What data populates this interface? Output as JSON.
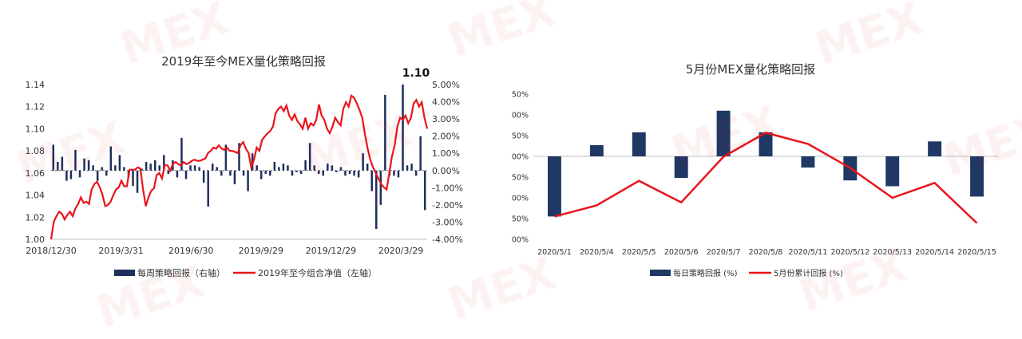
{
  "chart_data": [
    {
      "type": "bar+line",
      "title": "2019年至今MEX量化策略回报",
      "annotation": "1.10",
      "x_tick_labels": [
        "2018/12/30",
        "2019/3/31",
        "2019/6/30",
        "2019/9/29",
        "2019/12/29",
        "2020/3/29"
      ],
      "left_axis": {
        "ticks": [
          "1.00",
          "1.02",
          "1.04",
          "1.06",
          "1.08",
          "1.10",
          "1.12",
          "1.14"
        ],
        "ylim": [
          1.0,
          1.14
        ]
      },
      "right_axis": {
        "ticks": [
          "-4.00%",
          "-3.00%",
          "-2.00%",
          "-1.00%",
          "0.00%",
          "1.00%",
          "2.00%",
          "3.00%",
          "4.00%",
          "5.00%"
        ],
        "ylim": [
          -4.0,
          5.0
        ]
      },
      "series": [
        {
          "name": "每周策略回报（右轴）",
          "kind": "bar",
          "axis": "right",
          "color": "#1f2f5c",
          "values": [
            1.5,
            0.5,
            0.8,
            -0.6,
            -0.5,
            1.2,
            -0.4,
            0.7,
            0.6,
            0.3,
            -0.6,
            0.2,
            -0.3,
            1.4,
            0.3,
            0.9,
            0.2,
            -0.4,
            -0.9,
            -1.3,
            0.1,
            0.5,
            0.4,
            0.6,
            0.3,
            0.9,
            -0.2,
            0.6,
            -0.4,
            1.9,
            -0.5,
            0.3,
            0.3,
            0.2,
            -0.7,
            -2.1,
            0.4,
            0.2,
            -0.3,
            1.5,
            -0.3,
            -0.8,
            1.6,
            -0.3,
            -1.2,
            1.0,
            0.3,
            -0.5,
            -0.2,
            -0.3,
            0.5,
            0.2,
            0.4,
            0.3,
            -0.3,
            -0.1,
            -0.2,
            0.6,
            1.6,
            0.3,
            -0.2,
            -0.3,
            0.4,
            0.3,
            -0.1,
            0.2,
            -0.3,
            -0.2,
            -0.3,
            -0.4,
            1.0,
            0.4,
            -1.2,
            -3.4,
            -2.0,
            4.4,
            -0.3,
            -0.3,
            -0.4,
            5.0,
            0.3,
            0.4,
            -0.3,
            2.0,
            -2.3
          ]
        },
        {
          "name": "2019年至今组合净值（左轴）",
          "kind": "line",
          "axis": "left",
          "color": "#e8151b",
          "values": [
            1.0,
            1.016,
            1.021,
            1.025,
            1.023,
            1.018,
            1.022,
            1.025,
            1.021,
            1.028,
            1.032,
            1.038,
            1.033,
            1.034,
            1.032,
            1.045,
            1.05,
            1.052,
            1.047,
            1.04,
            1.03,
            1.031,
            1.034,
            1.04,
            1.045,
            1.047,
            1.053,
            1.048,
            1.048,
            1.063,
            1.063,
            1.063,
            1.065,
            1.064,
            1.045,
            1.03,
            1.038,
            1.044,
            1.046,
            1.058,
            1.06,
            1.055,
            1.067,
            1.067,
            1.062,
            1.068,
            1.07,
            1.068,
            1.067,
            1.07,
            1.068,
            1.069,
            1.071,
            1.072,
            1.071,
            1.071,
            1.072,
            1.073,
            1.078,
            1.08,
            1.083,
            1.082,
            1.085,
            1.082,
            1.081,
            1.083,
            1.08,
            1.08,
            1.079,
            1.078,
            1.085,
            1.088,
            1.082,
            1.078,
            1.065,
            1.072,
            1.083,
            1.08,
            1.09,
            1.093,
            1.096,
            1.098,
            1.102,
            1.114,
            1.118,
            1.12,
            1.116,
            1.121,
            1.112,
            1.108,
            1.113,
            1.107,
            1.104,
            1.1,
            1.11,
            1.1,
            1.105,
            1.103,
            1.108,
            1.122,
            1.112,
            1.108,
            1.1,
            1.096,
            1.102,
            1.11,
            1.106,
            1.103,
            1.118,
            1.124,
            1.12,
            1.13,
            1.128,
            1.123,
            1.117,
            1.11,
            1.095,
            1.082,
            1.072,
            1.065,
            1.06,
            1.055,
            1.05,
            1.047,
            1.045,
            1.06,
            1.075,
            1.085,
            1.102,
            1.11,
            1.108,
            1.112,
            1.105,
            1.11,
            1.123,
            1.126,
            1.12,
            1.124,
            1.11,
            1.1
          ]
        }
      ]
    },
    {
      "type": "bar+line",
      "title": "5月份MEX量化策略回报",
      "categories": [
        "2020/5/1",
        "2020/5/4",
        "2020/5/5",
        "2020/5/6",
        "2020/5/7",
        "2020/5/8",
        "2020/5/11",
        "2020/5/12",
        "2020/5/13",
        "2020/5/14",
        "2020/5/15"
      ],
      "y_axis": {
        "ticks": [
          "-2.00%",
          "-1.50%",
          "-1.00%",
          "-0.50%",
          "0.00%",
          "0.50%",
          "1.00%",
          "1.50%"
        ],
        "ylim": [
          -2.0,
          1.5
        ]
      },
      "series": [
        {
          "name": "每日策略回报 (%)",
          "kind": "bar",
          "color": "#1f3864",
          "values": [
            -1.45,
            0.27,
            0.58,
            -0.52,
            1.1,
            0.58,
            -0.27,
            -0.58,
            -0.72,
            0.36,
            -0.97
          ]
        },
        {
          "name": "5月份累计回报 (%)",
          "kind": "line",
          "color": "#e8151b",
          "values": [
            -1.45,
            -1.18,
            -0.59,
            -1.11,
            -0.01,
            0.57,
            0.3,
            -0.28,
            -1.0,
            -0.64,
            -1.61
          ]
        }
      ]
    }
  ],
  "watermark_text": "MEX"
}
